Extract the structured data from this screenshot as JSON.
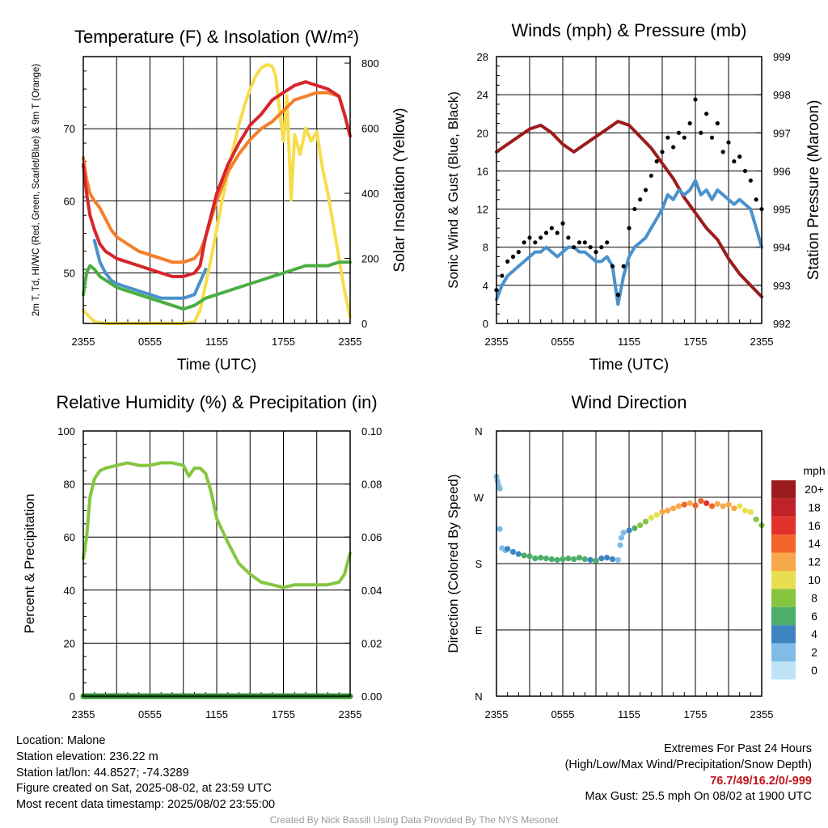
{
  "chart_data": [
    {
      "type": "line",
      "title": "Temperature (F) & Insolation (W/m²)",
      "xlabel": "Time (UTC)",
      "ylabel_left": "2m T, Td, HI/WC (Red, Green, Scarlet/Blue) & 9m T (Orange)",
      "ylabel_right": "Solar Insolation (Yellow)",
      "x_ticks": [
        "2355",
        "0555",
        "1155",
        "1755",
        "2355"
      ],
      "ylim_left": [
        43,
        80
      ],
      "ylim_right": [
        0,
        820
      ],
      "yticks_left": [
        50,
        60,
        70
      ],
      "yticks_right": [
        0,
        200,
        400,
        600,
        800
      ],
      "series": [
        {
          "color": "#f7dd4c",
          "axis": "right",
          "x": [
            0,
            1,
            2,
            3,
            4,
            5,
            6,
            7,
            8,
            9,
            10,
            10.5,
            11,
            11.5,
            12,
            12.5,
            13,
            13.5,
            14,
            14.5,
            15,
            15.5,
            16,
            16.5,
            17,
            17.3,
            17.7,
            18,
            18.3,
            18.7,
            19,
            19.5,
            20,
            20.5,
            21,
            21.5,
            22,
            22.5,
            23,
            23.5,
            24
          ],
          "values": [
            40,
            5,
            0,
            0,
            0,
            0,
            0,
            0,
            0,
            0,
            5,
            40,
            120,
            200,
            290,
            380,
            460,
            540,
            610,
            670,
            720,
            760,
            785,
            795,
            790,
            760,
            640,
            560,
            700,
            380,
            580,
            520,
            600,
            560,
            590,
            480,
            400,
            300,
            200,
            100,
            20
          ]
        },
        {
          "color": "#4a92cd",
          "axis": "left",
          "x": [
            1,
            1.5,
            2,
            2.5,
            3,
            4,
            5,
            6,
            7,
            8,
            9,
            10,
            11
          ],
          "values": [
            54.5,
            51.5,
            50,
            49,
            48.5,
            48,
            47.5,
            47,
            46.5,
            46.5,
            46.5,
            47,
            50.5
          ]
        },
        {
          "color": "#4bae44",
          "axis": "left",
          "x": [
            0,
            0.3,
            0.6,
            1,
            1.5,
            2,
            3,
            4,
            5,
            6,
            7,
            8,
            9,
            10,
            11,
            12,
            13,
            14,
            15,
            16,
            17,
            18,
            19,
            20,
            21,
            22,
            23,
            24
          ],
          "values": [
            47,
            50,
            51,
            50.5,
            49.5,
            49,
            48,
            47.5,
            47,
            46.5,
            46,
            45.5,
            45,
            45.5,
            46.5,
            47,
            47.5,
            48,
            48.5,
            49,
            49.5,
            50,
            50.5,
            51,
            51,
            51,
            51.5,
            51.5
          ]
        },
        {
          "color": "#f47f2a",
          "axis": "left",
          "x": [
            0,
            0.3,
            0.6,
            1,
            1.5,
            2,
            2.5,
            3,
            3.5,
            4,
            5,
            6,
            7,
            8,
            9,
            10,
            10.5,
            11,
            12,
            13,
            14,
            15,
            16,
            17,
            18,
            19,
            20,
            21,
            22,
            23,
            23.5,
            24
          ],
          "values": [
            66,
            63,
            61,
            60,
            59,
            57.5,
            56,
            55,
            54.5,
            54,
            53,
            52.5,
            52,
            51.5,
            51.5,
            52,
            53,
            55,
            60,
            64,
            66.5,
            68.5,
            70,
            71,
            72.5,
            74,
            74.5,
            75,
            75,
            74.5,
            72,
            69
          ]
        },
        {
          "color": "#d7262b",
          "axis": "left",
          "x": [
            0,
            0.3,
            0.6,
            1,
            1.5,
            2,
            3,
            4,
            5,
            6,
            7,
            8,
            9,
            10,
            10.5,
            11,
            12,
            13,
            14,
            15,
            16,
            17,
            18,
            19,
            20,
            21,
            22,
            23,
            23.5,
            24
          ],
          "values": [
            65,
            61,
            58,
            56,
            54,
            53,
            52,
            51.5,
            51,
            50.5,
            50,
            49.5,
            49.5,
            50,
            51,
            55,
            61,
            65,
            68,
            70.5,
            72,
            74,
            75,
            76,
            76.5,
            76,
            75.5,
            74.5,
            72,
            69
          ]
        }
      ]
    },
    {
      "type": "line",
      "title": "Winds (mph) & Pressure (mb)",
      "xlabel": "Time (UTC)",
      "ylabel_left": "Sonic Wind & Gust (Blue, Black)",
      "ylabel_right": "Station Pressure (Maroon)",
      "x_ticks": [
        "2355",
        "0555",
        "1155",
        "1755",
        "2355"
      ],
      "ylim_left": [
        0,
        28
      ],
      "ylim_right": [
        992,
        999
      ],
      "yticks_left": [
        0,
        4,
        8,
        12,
        16,
        20,
        24,
        28
      ],
      "yticks_right": [
        992,
        993,
        994,
        995,
        996,
        997,
        998,
        999
      ],
      "series": [
        {
          "name": "Pressure",
          "color": "#9b1c1c",
          "axis": "right",
          "x": [
            0,
            1,
            2,
            3,
            4,
            5,
            6,
            7,
            8,
            9,
            10,
            11,
            12,
            13,
            14,
            15,
            16,
            17,
            18,
            19,
            20,
            21,
            22,
            23,
            24
          ],
          "values": [
            996.5,
            996.7,
            996.9,
            997.1,
            997.2,
            997.0,
            996.7,
            996.5,
            996.7,
            996.9,
            997.1,
            997.3,
            997.2,
            996.9,
            996.6,
            996.2,
            995.8,
            995.3,
            994.9,
            994.5,
            994.2,
            993.7,
            993.3,
            993.0,
            992.7
          ]
        },
        {
          "name": "Wind",
          "color": "#4a92cd",
          "axis": "left",
          "x": [
            0,
            0.5,
            1,
            1.5,
            2,
            2.5,
            3,
            3.5,
            4,
            4.5,
            5,
            5.5,
            6,
            6.5,
            7,
            7.5,
            8,
            8.5,
            9,
            9.5,
            10,
            10.5,
            11,
            11.5,
            12,
            12.5,
            13,
            13.5,
            14,
            14.5,
            15,
            15.5,
            16,
            16.5,
            17,
            17.5,
            18,
            18.5,
            19,
            19.5,
            20,
            20.5,
            21,
            21.5,
            22,
            22.5,
            23,
            23.5,
            24
          ],
          "values": [
            2.5,
            4,
            5,
            5.5,
            6,
            6.5,
            7,
            7.5,
            7.5,
            8,
            7.5,
            7,
            7.5,
            8,
            8,
            7.5,
            7.5,
            7,
            6.5,
            6.5,
            7,
            6,
            2,
            5,
            7,
            8,
            8.5,
            9,
            10,
            11,
            12,
            13.5,
            13,
            14,
            13.5,
            14,
            15,
            13.5,
            14,
            13,
            14,
            13.5,
            13,
            12.5,
            13,
            12.5,
            12,
            10,
            8
          ]
        },
        {
          "name": "Gust",
          "color": "#000000",
          "axis": "left",
          "x": [
            0,
            0.5,
            1,
            1.5,
            2,
            2.5,
            3,
            3.5,
            4,
            4.5,
            5,
            5.5,
            6,
            6.5,
            7,
            7.5,
            8,
            8.5,
            9,
            9.5,
            10,
            10.5,
            11,
            11.5,
            12,
            12.5,
            13,
            13.5,
            14,
            14.5,
            15,
            15.5,
            16,
            16.5,
            17,
            17.5,
            18,
            18.5,
            19,
            19.5,
            20,
            20.5,
            21,
            21.5,
            22,
            22.5,
            23,
            23.5,
            24
          ],
          "values": [
            3.5,
            5,
            6.5,
            7,
            7.5,
            8.5,
            9,
            8.5,
            9,
            9.5,
            10,
            9.5,
            10.5,
            9,
            8,
            8.5,
            8.5,
            8,
            7.5,
            8,
            8.5,
            6,
            3,
            6,
            10,
            12,
            13,
            14,
            15.5,
            17,
            18,
            19.5,
            18.5,
            20,
            19.5,
            21,
            23.5,
            20,
            22,
            19.5,
            21,
            18,
            19,
            17,
            17.5,
            16,
            15,
            13,
            12
          ]
        }
      ]
    },
    {
      "type": "line",
      "title": "Relative Humidity (%) & Precipitation (in)",
      "ylabel_left": "Percent & Precipitation",
      "x_ticks": [
        "2355",
        "0555",
        "1155",
        "1755",
        "2355"
      ],
      "ylim_left": [
        0,
        100
      ],
      "ylim_right": [
        0,
        0.1
      ],
      "yticks_left": [
        0,
        20,
        40,
        60,
        80,
        100
      ],
      "yticks_right": [
        "0.00",
        "0.02",
        "0.04",
        "0.06",
        "0.08",
        "0.10"
      ],
      "series": [
        {
          "name": "Relative Humidity",
          "color": "#86c540",
          "axis": "left",
          "x": [
            0,
            0.3,
            0.6,
            1,
            1.5,
            2,
            3,
            4,
            5,
            6,
            7,
            8,
            9,
            9.5,
            10,
            10.5,
            11,
            11.5,
            12,
            13,
            14,
            15,
            16,
            17,
            18,
            19,
            20,
            21,
            22,
            23,
            23.5,
            24
          ],
          "values": [
            52,
            60,
            75,
            82,
            85,
            86,
            87,
            88,
            87,
            87,
            88,
            88,
            87,
            83,
            86,
            86,
            84,
            77,
            67,
            58,
            50,
            46,
            43,
            42,
            41,
            42,
            42,
            42,
            42,
            43,
            46,
            54
          ]
        },
        {
          "name": "Precipitation",
          "color": "#2f8f2f",
          "axis": "right",
          "x": [
            0,
            24
          ],
          "values": [
            0,
            0
          ]
        }
      ]
    },
    {
      "type": "scatter",
      "title": "Wind Direction",
      "ylabel_left": "Direction (Colored By Speed)",
      "x_ticks": [
        "2355",
        "0555",
        "1155",
        "1755",
        "2355"
      ],
      "yticks_left": [
        "N",
        "E",
        "S",
        "W",
        "N"
      ],
      "ylim_left": [
        0,
        360
      ],
      "colorbar_title": "mph",
      "colorbar_labels": [
        "20+",
        "18",
        "16",
        "14",
        "12",
        "10",
        "8",
        "6",
        "4",
        "2",
        "0"
      ],
      "colorbar_colors": [
        "#9b1c1c",
        "#c0222a",
        "#e0322a",
        "#f2642b",
        "#f7a84a",
        "#e7df50",
        "#86c540",
        "#4bae6a",
        "#3d85c0",
        "#7fbde6",
        "#bfe4f7"
      ],
      "points": [
        {
          "x": 0,
          "dir": 298,
          "mph": 2
        },
        {
          "x": 0.1,
          "dir": 292,
          "mph": 2
        },
        {
          "x": 0.2,
          "dir": 286,
          "mph": 2
        },
        {
          "x": 0.3,
          "dir": 282,
          "mph": 2
        },
        {
          "x": 0.3,
          "dir": 227,
          "mph": 3
        },
        {
          "x": 0.5,
          "dir": 201,
          "mph": 3
        },
        {
          "x": 0.8,
          "dir": 198,
          "mph": 3
        },
        {
          "x": 1,
          "dir": 200,
          "mph": 4
        },
        {
          "x": 1.5,
          "dir": 196,
          "mph": 4
        },
        {
          "x": 2,
          "dir": 193,
          "mph": 5
        },
        {
          "x": 2.5,
          "dir": 191,
          "mph": 6
        },
        {
          "x": 3,
          "dir": 190,
          "mph": 6
        },
        {
          "x": 3.5,
          "dir": 187,
          "mph": 6
        },
        {
          "x": 4,
          "dir": 188,
          "mph": 6
        },
        {
          "x": 4.5,
          "dir": 187,
          "mph": 7
        },
        {
          "x": 5,
          "dir": 186,
          "mph": 7
        },
        {
          "x": 5.5,
          "dir": 185,
          "mph": 7
        },
        {
          "x": 6,
          "dir": 186,
          "mph": 7
        },
        {
          "x": 6.5,
          "dir": 187,
          "mph": 6
        },
        {
          "x": 7,
          "dir": 186,
          "mph": 6
        },
        {
          "x": 7.5,
          "dir": 188,
          "mph": 7
        },
        {
          "x": 8,
          "dir": 186,
          "mph": 6
        },
        {
          "x": 8.5,
          "dir": 185,
          "mph": 5
        },
        {
          "x": 9,
          "dir": 184,
          "mph": 6
        },
        {
          "x": 9.5,
          "dir": 187,
          "mph": 5
        },
        {
          "x": 10,
          "dir": 188,
          "mph": 4
        },
        {
          "x": 10.5,
          "dir": 186,
          "mph": 4
        },
        {
          "x": 11,
          "dir": 185,
          "mph": 3
        },
        {
          "x": 11.2,
          "dir": 205,
          "mph": 3
        },
        {
          "x": 11.3,
          "dir": 215,
          "mph": 2
        },
        {
          "x": 11.5,
          "dir": 222,
          "mph": 3
        },
        {
          "x": 12,
          "dir": 225,
          "mph": 4
        },
        {
          "x": 12.5,
          "dir": 228,
          "mph": 6
        },
        {
          "x": 13,
          "dir": 232,
          "mph": 8
        },
        {
          "x": 13.5,
          "dir": 237,
          "mph": 9
        },
        {
          "x": 14,
          "dir": 242,
          "mph": 10
        },
        {
          "x": 14.5,
          "dir": 246,
          "mph": 10
        },
        {
          "x": 15,
          "dir": 250,
          "mph": 12
        },
        {
          "x": 15.5,
          "dir": 252,
          "mph": 12
        },
        {
          "x": 16,
          "dir": 255,
          "mph": 13
        },
        {
          "x": 16.5,
          "dir": 258,
          "mph": 12
        },
        {
          "x": 17,
          "dir": 260,
          "mph": 14
        },
        {
          "x": 17.5,
          "dir": 262,
          "mph": 13
        },
        {
          "x": 18,
          "dir": 259,
          "mph": 15
        },
        {
          "x": 18.5,
          "dir": 265,
          "mph": 14
        },
        {
          "x": 19,
          "dir": 262,
          "mph": 16
        },
        {
          "x": 19.5,
          "dir": 258,
          "mph": 14
        },
        {
          "x": 20,
          "dir": 261,
          "mph": 13
        },
        {
          "x": 20.5,
          "dir": 258,
          "mph": 13
        },
        {
          "x": 21,
          "dir": 260,
          "mph": 12
        },
        {
          "x": 21.5,
          "dir": 255,
          "mph": 12
        },
        {
          "x": 22,
          "dir": 258,
          "mph": 11
        },
        {
          "x": 22.5,
          "dir": 252,
          "mph": 10
        },
        {
          "x": 23,
          "dir": 250,
          "mph": 10
        },
        {
          "x": 23.5,
          "dir": 240,
          "mph": 9
        },
        {
          "x": 24,
          "dir": 232,
          "mph": 8
        }
      ]
    }
  ],
  "station": {
    "location": "Location: Malone",
    "elevation": "Station elevation: 236.22 m",
    "latlon": "Station lat/lon: 44.8527; -74.3289",
    "created": "Figure created on Sat, 2025-08-02, at 23:59 UTC",
    "recent": "Most recent data timestamp: 2025/08/02 23:55:00"
  },
  "extremes": {
    "title": "Extremes For Past 24 Hours",
    "subtitle": "(High/Low/Max Wind/Precipitation/Snow Depth)",
    "values": "76.7/49/16.2/0/-999",
    "max_gust": "Max Gust: 25.5 mph On 08/02 at 1900 UTC"
  },
  "credit": "Created By Nick Bassill Using Data Provided By The NYS Mesonet"
}
